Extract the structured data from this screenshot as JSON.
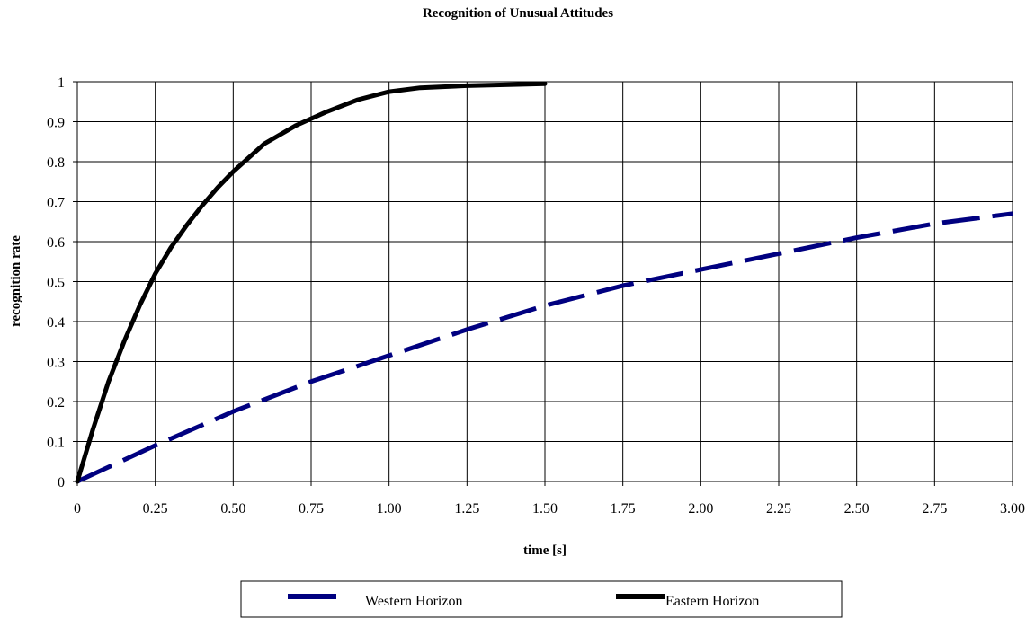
{
  "chart_data": {
    "type": "line",
    "title": "Recognition of Unusual Attitudes",
    "xlabel": "time [s]",
    "ylabel": "recognition rate",
    "xlim": [
      0,
      3.0
    ],
    "ylim": [
      0,
      1
    ],
    "grid": true,
    "x_ticks": [
      "0",
      "0.25",
      "0.50",
      "0.75",
      "1.00",
      "1.25",
      "1.50",
      "1.75",
      "2.00",
      "2.25",
      "2.50",
      "2.75",
      "3.00"
    ],
    "y_ticks": [
      "0",
      "0.1",
      "0.2",
      "0.3",
      "0.4",
      "0.5",
      "0.6",
      "0.7",
      "0.8",
      "0.9",
      "1"
    ],
    "legend_position": "bottom-center",
    "series": [
      {
        "name": "Western Horizon",
        "color": "#000080",
        "style": "dashed",
        "x": [
          0,
          0.25,
          0.5,
          0.75,
          1.0,
          1.25,
          1.5,
          1.75,
          2.0,
          2.25,
          2.5,
          2.75,
          3.0
        ],
        "y": [
          0,
          0.09,
          0.175,
          0.25,
          0.315,
          0.38,
          0.44,
          0.49,
          0.53,
          0.57,
          0.61,
          0.645,
          0.67
        ]
      },
      {
        "name": "Eastern Horizon",
        "color": "#000000",
        "style": "solid",
        "x": [
          0,
          0.05,
          0.1,
          0.15,
          0.2,
          0.25,
          0.3,
          0.35,
          0.4,
          0.45,
          0.5,
          0.55,
          0.6,
          0.7,
          0.8,
          0.9,
          1.0,
          1.1,
          1.25,
          1.4,
          1.5
        ],
        "y": [
          0,
          0.13,
          0.25,
          0.35,
          0.44,
          0.52,
          0.585,
          0.64,
          0.69,
          0.735,
          0.775,
          0.81,
          0.845,
          0.89,
          0.925,
          0.955,
          0.975,
          0.985,
          0.99,
          0.993,
          0.995
        ]
      }
    ]
  }
}
